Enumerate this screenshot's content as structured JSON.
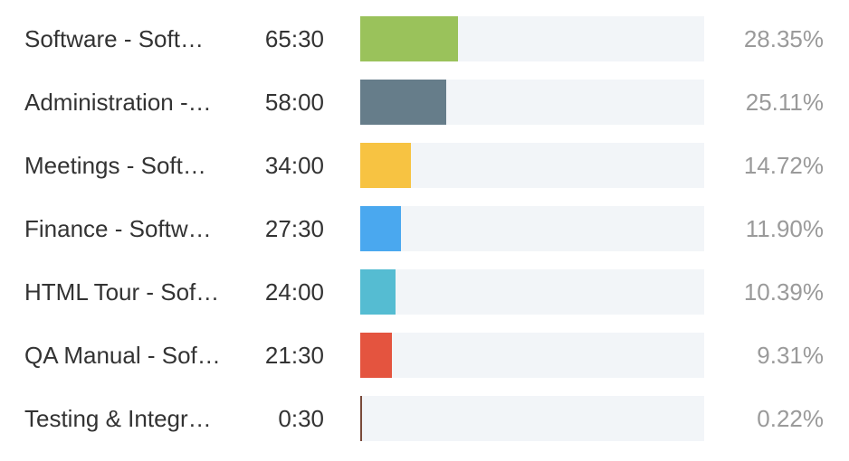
{
  "chart_data": {
    "type": "bar",
    "orientation": "horizontal",
    "title": "",
    "xlabel": "",
    "ylabel": "",
    "xlim": [
      0,
      100
    ],
    "grid": false,
    "legend": "none",
    "rows": [
      {
        "label": "Software - Soft…",
        "duration": "65:30",
        "value": 28.35,
        "percent_label": "28.35%",
        "color": "#9ac25b"
      },
      {
        "label": "Administration -…",
        "duration": "58:00",
        "value": 25.11,
        "percent_label": "25.11%",
        "color": "#667d8a"
      },
      {
        "label": "Meetings - Soft…",
        "duration": "34:00",
        "value": 14.72,
        "percent_label": "14.72%",
        "color": "#f7c342"
      },
      {
        "label": "Finance - Softw…",
        "duration": "27:30",
        "value": 11.9,
        "percent_label": "11.90%",
        "color": "#4aa8ef"
      },
      {
        "label": "HTML Tour - Sof…",
        "duration": "24:00",
        "value": 10.39,
        "percent_label": "10.39%",
        "color": "#55bcd2"
      },
      {
        "label": "QA Manual - Sof…",
        "duration": "21:30",
        "value": 9.31,
        "percent_label": "9.31%",
        "color": "#e4543f"
      },
      {
        "label": "Testing & Integr…",
        "duration": "0:30",
        "value": 0.22,
        "percent_label": "0.22%",
        "color": "#7a4a3a"
      }
    ]
  }
}
